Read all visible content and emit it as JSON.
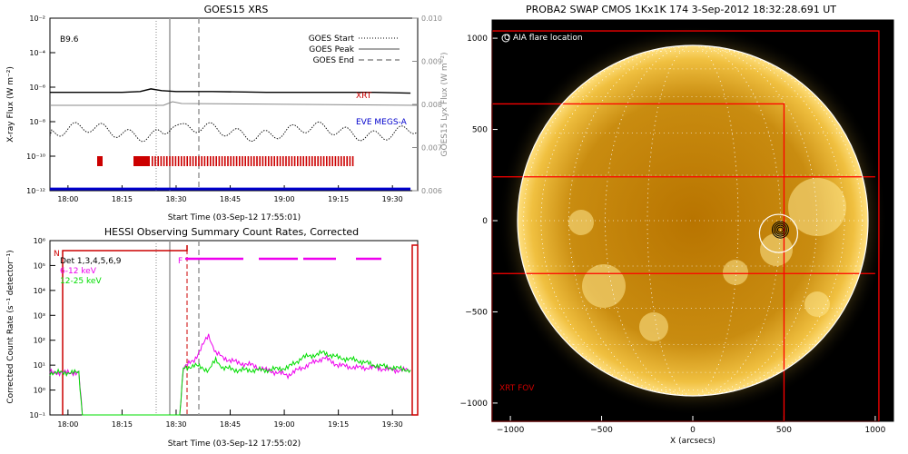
{
  "colors": {
    "xrt": "#cc0000",
    "eve": "#0000cc",
    "hessi_low": "#ee00ee",
    "hessi_high": "#00dd00",
    "grid": "#888888",
    "fov": "#ff0000"
  },
  "chart_data": [
    {
      "type": "line",
      "title": "GOES15 XRS",
      "xlabel": "Start Time (03-Sep-12 17:55:01)",
      "ylabel": "X-ray Flux (W m⁻²)",
      "y2label": "GOES15 Lyx Flux (W m⁻²)",
      "xticks": [
        "18:00",
        "18:15",
        "18:30",
        "18:45",
        "19:00",
        "19:15",
        "19:30"
      ],
      "yticks": [
        "10⁻²",
        "10⁻⁴",
        "10⁻⁶",
        "10⁻⁸",
        "10⁻¹⁰",
        "10⁻¹²"
      ],
      "y2ticks": [
        "0.010",
        "0.009",
        "0.008",
        "0.007",
        "0.006"
      ],
      "ylim_log10": [
        -12,
        -2
      ],
      "y2lim": [
        0.006,
        0.01
      ],
      "class_label": "B9.6",
      "legend": [
        "GOES Start",
        "GOES Peak",
        "GOES End"
      ],
      "annotations": [
        "XRT",
        "EVE MEGS-A"
      ],
      "series": [
        {
          "name": "XRT",
          "times_min": [
            0,
            10,
            20,
            25,
            28,
            31,
            35,
            45,
            60,
            75,
            90,
            100
          ],
          "log_flux": [
            -6.3,
            -6.3,
            -6.3,
            -6.25,
            -6.1,
            -6.2,
            -6.25,
            -6.25,
            -6.3,
            -6.3,
            -6.3,
            -6.35
          ]
        },
        {
          "name": "EVE MEGS-A",
          "times_min": [
            0,
            100
          ],
          "log_flux": [
            -11.9,
            -11.9
          ]
        }
      ]
    },
    {
      "type": "line",
      "title": "HESSI Observing Summary Count Rates, Corrected",
      "xlabel": "Start Time (03-Sep-12 17:55:02)",
      "ylabel": "Corrected Count Rate (s⁻¹ detector⁻¹)",
      "xticks": [
        "18:00",
        "18:15",
        "18:30",
        "18:45",
        "19:00",
        "19:15",
        "19:30"
      ],
      "yticks": [
        "10⁶",
        "10⁵",
        "10⁴",
        "10³",
        "10²",
        "10¹",
        "10⁰",
        "10⁻¹"
      ],
      "ylim_log10": [
        -1,
        6
      ],
      "legend_title": "Det 1,3,4,5,6,9",
      "flags": [
        "N",
        "F"
      ],
      "series": [
        {
          "name": "6-12 keV",
          "times_min": [
            0,
            8,
            9,
            36,
            37,
            40,
            44,
            46,
            48,
            52,
            56,
            60,
            66,
            70,
            76,
            80,
            85,
            90,
            95,
            100
          ],
          "log_rate": [
            0.7,
            0.7,
            -1,
            -1,
            0.9,
            1.2,
            2.2,
            1.5,
            1.3,
            1.1,
            1.0,
            0.8,
            0.6,
            0.9,
            1.3,
            1.0,
            0.9,
            0.9,
            0.8,
            0.8
          ]
        },
        {
          "name": "12-25 keV",
          "times_min": [
            0,
            8,
            9,
            36,
            37,
            40,
            44,
            46,
            48,
            52,
            56,
            60,
            66,
            70,
            76,
            80,
            85,
            90,
            95,
            100
          ],
          "log_rate": [
            0.7,
            0.7,
            -1,
            -1,
            0.85,
            1.0,
            0.8,
            1.2,
            0.9,
            0.8,
            0.8,
            0.8,
            0.9,
            1.3,
            1.5,
            1.3,
            1.2,
            1.0,
            0.9,
            0.8
          ]
        }
      ]
    },
    {
      "type": "image",
      "title": "PROBA2 SWAP CMOS 1Kx1K 174  3-Sep-2012 18:32:28.691 UT",
      "xlabel": "X (arcsecs)",
      "xticks": [
        "−1000",
        "−500",
        "0",
        "500",
        "1000"
      ],
      "yticks": [
        "1000",
        "500",
        "0",
        "−500",
        "−1000"
      ],
      "xlim": [
        -1100,
        1100
      ],
      "ylim": [
        -1100,
        1100
      ],
      "annotations": [
        "O AIA flare location",
        "XRT FOV"
      ],
      "flare_location": [
        470,
        -70
      ]
    }
  ]
}
